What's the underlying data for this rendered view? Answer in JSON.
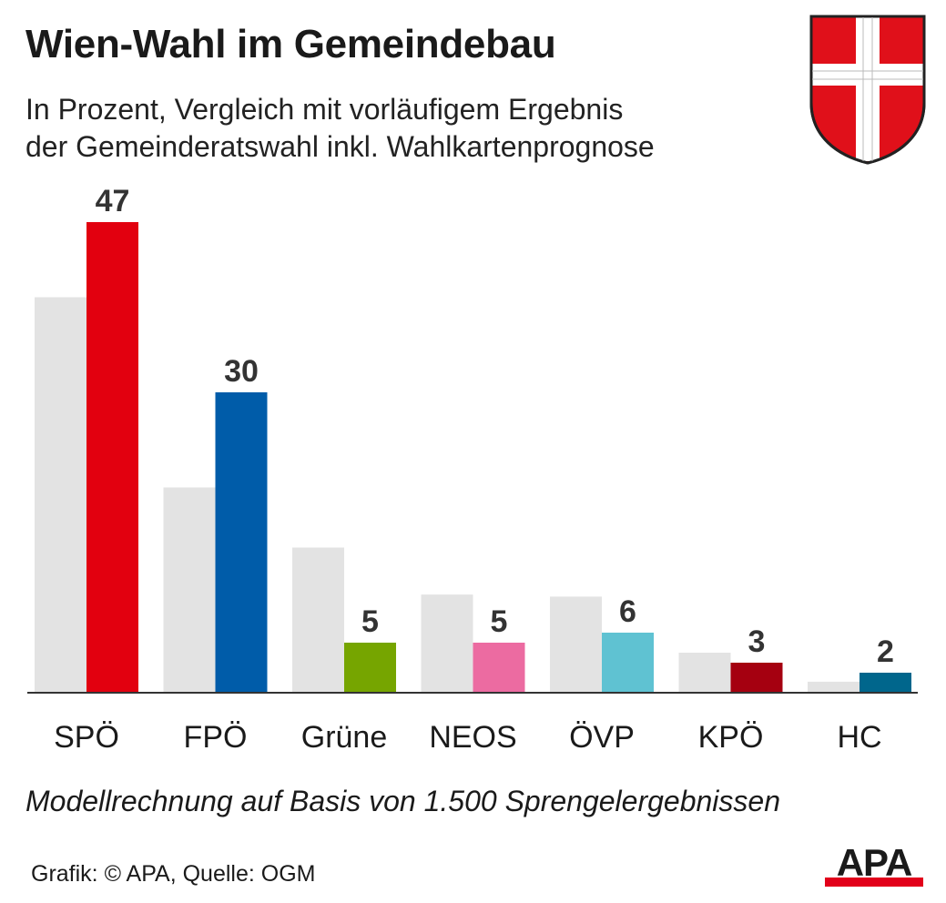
{
  "header": {
    "title": "Wien-Wahl im Gemeindebau",
    "subtitle_line1": "In Prozent, Vergleich mit vorläufigem Ergebnis",
    "subtitle_line2": "der Gemeinderatswahl inkl. Wahlkartenprognose"
  },
  "footer": {
    "note": "Modellrechnung auf Basis von 1.500 Sprengelergebnissen",
    "source": "Grafik: © APA, Quelle: OGM",
    "logo_text": "APA"
  },
  "colors": {
    "comparison_bar": "#e3e3e3",
    "crest_red": "#e0101a",
    "logo_red": "#e2001a"
  },
  "chart_data": {
    "type": "bar",
    "categories": [
      "SPÖ",
      "FPÖ",
      "Grüne",
      "NEOS",
      "ÖVP",
      "KPÖ",
      "HC"
    ],
    "series": [
      {
        "values": [
          39.5,
          20.5,
          14.5,
          9.8,
          9.6,
          4.0,
          1.1
        ],
        "color": "#e3e3e3"
      },
      {
        "values": [
          47,
          30,
          5,
          5,
          6,
          3,
          2
        ],
        "labels": [
          "47",
          "30",
          "5",
          "5",
          "6",
          "3",
          "2"
        ],
        "colors": [
          "#e2000f",
          "#005ca9",
          "#76a500",
          "#ec6ba1",
          "#5fc2d2",
          "#a50010",
          "#00668c"
        ]
      }
    ],
    "ylim": [
      0,
      50
    ],
    "grid": false,
    "legend": "none"
  }
}
